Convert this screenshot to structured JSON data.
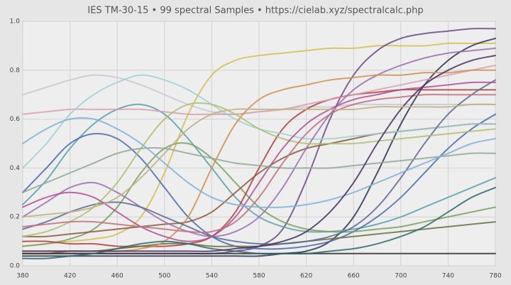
{
  "chart_data": {
    "type": "line",
    "title": "IES TM-30-15 • 99 spectral Samples • https://cielab.xyz/spectralcalc.php",
    "x": [
      380,
      400,
      420,
      440,
      460,
      480,
      500,
      520,
      540,
      560,
      580,
      600,
      620,
      640,
      660,
      680,
      700,
      720,
      740,
      760,
      780
    ],
    "xlim": [
      380,
      780
    ],
    "xticks": [
      380,
      420,
      460,
      500,
      540,
      580,
      620,
      660,
      700,
      740,
      780
    ],
    "ylim": [
      0,
      1
    ],
    "yticks": [
      {
        "value": 0,
        "label": "0.0"
      },
      0.2,
      0.4,
      0.6,
      0.8,
      {
        "value": 1,
        "label": "1.0"
      }
    ],
    "grid": true,
    "series": [
      {
        "color": "#c8c8d4",
        "values": [
          0.7,
          0.73,
          0.76,
          0.78,
          0.77,
          0.74,
          0.7,
          0.66,
          0.63,
          0.62,
          0.63,
          0.64,
          0.65,
          0.65,
          0.66,
          0.66,
          0.66,
          0.66,
          0.66,
          0.66,
          0.66
        ]
      },
      {
        "color": "#d4c050",
        "values": [
          0.08,
          0.09,
          0.1,
          0.11,
          0.13,
          0.2,
          0.38,
          0.62,
          0.78,
          0.84,
          0.86,
          0.87,
          0.88,
          0.89,
          0.89,
          0.9,
          0.9,
          0.9,
          0.91,
          0.91,
          0.91
        ]
      },
      {
        "color": "#6a4a8a",
        "values": [
          0.05,
          0.05,
          0.05,
          0.05,
          0.05,
          0.05,
          0.05,
          0.05,
          0.05,
          0.06,
          0.08,
          0.15,
          0.35,
          0.6,
          0.78,
          0.88,
          0.93,
          0.95,
          0.96,
          0.97,
          0.97
        ]
      },
      {
        "color": "#2a3550",
        "values": [
          0.04,
          0.04,
          0.04,
          0.04,
          0.04,
          0.04,
          0.04,
          0.04,
          0.04,
          0.04,
          0.04,
          0.05,
          0.06,
          0.1,
          0.2,
          0.38,
          0.58,
          0.74,
          0.84,
          0.9,
          0.93
        ]
      },
      {
        "color": "#5aa0a8",
        "values": [
          0.25,
          0.35,
          0.48,
          0.58,
          0.64,
          0.66,
          0.62,
          0.52,
          0.4,
          0.28,
          0.2,
          0.16,
          0.14,
          0.14,
          0.15,
          0.17,
          0.2,
          0.24,
          0.28,
          0.32,
          0.36
        ]
      },
      {
        "color": "#4a6ab0",
        "values": [
          0.3,
          0.4,
          0.5,
          0.54,
          0.52,
          0.44,
          0.32,
          0.2,
          0.12,
          0.08,
          0.07,
          0.07,
          0.08,
          0.1,
          0.14,
          0.2,
          0.28,
          0.38,
          0.48,
          0.56,
          0.62
        ]
      },
      {
        "color": "#7aa060",
        "values": [
          0.08,
          0.09,
          0.11,
          0.15,
          0.24,
          0.38,
          0.48,
          0.5,
          0.44,
          0.34,
          0.24,
          0.18,
          0.15,
          0.14,
          0.14,
          0.15,
          0.16,
          0.18,
          0.2,
          0.22,
          0.24
        ]
      },
      {
        "color": "#b04040",
        "values": [
          0.1,
          0.1,
          0.09,
          0.09,
          0.08,
          0.08,
          0.08,
          0.09,
          0.12,
          0.22,
          0.4,
          0.56,
          0.64,
          0.68,
          0.7,
          0.71,
          0.72,
          0.72,
          0.72,
          0.72,
          0.72
        ]
      },
      {
        "color": "#d8a0b0",
        "values": [
          0.62,
          0.63,
          0.64,
          0.64,
          0.64,
          0.64,
          0.63,
          0.62,
          0.62,
          0.62,
          0.63,
          0.64,
          0.66,
          0.68,
          0.7,
          0.72,
          0.74,
          0.76,
          0.78,
          0.8,
          0.82
        ]
      },
      {
        "color": "#6a7040",
        "values": [
          0.05,
          0.05,
          0.06,
          0.06,
          0.07,
          0.08,
          0.09,
          0.09,
          0.08,
          0.08,
          0.08,
          0.09,
          0.1,
          0.11,
          0.12,
          0.13,
          0.14,
          0.15,
          0.16,
          0.17,
          0.18
        ]
      },
      {
        "color": "#8a5a40",
        "values": [
          0.12,
          0.12,
          0.13,
          0.14,
          0.15,
          0.16,
          0.17,
          0.18,
          0.22,
          0.3,
          0.38,
          0.44,
          0.48,
          0.5,
          0.52,
          0.54,
          0.55,
          0.56,
          0.57,
          0.58,
          0.58
        ]
      },
      {
        "color": "#a0d0d0",
        "values": [
          0.4,
          0.5,
          0.62,
          0.7,
          0.75,
          0.78,
          0.76,
          0.72,
          0.66,
          0.6,
          0.56,
          0.54,
          0.52,
          0.52,
          0.53,
          0.54,
          0.55,
          0.56,
          0.57,
          0.58,
          0.58
        ]
      },
      {
        "color": "#9a70b0",
        "values": [
          0.2,
          0.26,
          0.32,
          0.34,
          0.3,
          0.24,
          0.18,
          0.14,
          0.12,
          0.14,
          0.2,
          0.32,
          0.48,
          0.62,
          0.72,
          0.78,
          0.82,
          0.85,
          0.87,
          0.88,
          0.89
        ]
      },
      {
        "color": "#d09050",
        "values": [
          0.06,
          0.06,
          0.06,
          0.06,
          0.06,
          0.07,
          0.1,
          0.2,
          0.4,
          0.58,
          0.68,
          0.72,
          0.74,
          0.76,
          0.77,
          0.78,
          0.78,
          0.79,
          0.79,
          0.8,
          0.8
        ]
      },
      {
        "color": "#303030",
        "values": [
          0.05,
          0.05,
          0.05,
          0.05,
          0.05,
          0.05,
          0.05,
          0.05,
          0.05,
          0.05,
          0.05,
          0.05,
          0.05,
          0.05,
          0.05,
          0.05,
          0.05,
          0.05,
          0.05,
          0.05,
          0.05
        ]
      },
      {
        "color": "#5a6a90",
        "values": [
          0.15,
          0.18,
          0.22,
          0.25,
          0.26,
          0.24,
          0.2,
          0.16,
          0.12,
          0.1,
          0.09,
          0.09,
          0.1,
          0.12,
          0.16,
          0.24,
          0.36,
          0.5,
          0.62,
          0.7,
          0.76
        ]
      },
      {
        "color": "#b0c070",
        "values": [
          0.12,
          0.14,
          0.18,
          0.24,
          0.34,
          0.48,
          0.6,
          0.66,
          0.66,
          0.62,
          0.56,
          0.52,
          0.5,
          0.5,
          0.5,
          0.51,
          0.52,
          0.53,
          0.54,
          0.55,
          0.56
        ]
      },
      {
        "color": "#b05090",
        "values": [
          0.24,
          0.28,
          0.3,
          0.28,
          0.22,
          0.16,
          0.12,
          0.1,
          0.12,
          0.2,
          0.34,
          0.48,
          0.58,
          0.64,
          0.68,
          0.7,
          0.72,
          0.73,
          0.74,
          0.75,
          0.75
        ]
      },
      {
        "color": "#90a898",
        "values": [
          0.3,
          0.34,
          0.38,
          0.42,
          0.46,
          0.48,
          0.48,
          0.46,
          0.44,
          0.42,
          0.41,
          0.4,
          0.4,
          0.4,
          0.41,
          0.42,
          0.43,
          0.44,
          0.45,
          0.46,
          0.46
        ]
      },
      {
        "color": "#306868",
        "values": [
          0.03,
          0.03,
          0.04,
          0.05,
          0.07,
          0.09,
          0.1,
          0.09,
          0.07,
          0.06,
          0.05,
          0.05,
          0.05,
          0.06,
          0.07,
          0.09,
          0.12,
          0.16,
          0.22,
          0.28,
          0.32
        ]
      },
      {
        "color": "#c07080",
        "values": [
          0.16,
          0.17,
          0.18,
          0.18,
          0.17,
          0.16,
          0.15,
          0.14,
          0.14,
          0.18,
          0.28,
          0.42,
          0.54,
          0.62,
          0.66,
          0.68,
          0.69,
          0.7,
          0.7,
          0.7,
          0.7
        ]
      },
      {
        "color": "#80b0d8",
        "values": [
          0.5,
          0.56,
          0.6,
          0.6,
          0.56,
          0.5,
          0.42,
          0.34,
          0.28,
          0.25,
          0.24,
          0.24,
          0.25,
          0.27,
          0.3,
          0.34,
          0.38,
          0.42,
          0.46,
          0.5,
          0.52
        ]
      },
      {
        "color": "#4a3060",
        "values": [
          0.06,
          0.06,
          0.06,
          0.06,
          0.06,
          0.06,
          0.06,
          0.06,
          0.06,
          0.07,
          0.08,
          0.1,
          0.14,
          0.22,
          0.34,
          0.5,
          0.64,
          0.74,
          0.8,
          0.84,
          0.86
        ]
      },
      {
        "color": "#c0b080",
        "values": [
          0.2,
          0.21,
          0.22,
          0.24,
          0.28,
          0.36,
          0.46,
          0.56,
          0.62,
          0.64,
          0.64,
          0.64,
          0.64,
          0.64,
          0.64,
          0.65,
          0.65,
          0.65,
          0.65,
          0.66,
          0.66
        ]
      }
    ]
  }
}
